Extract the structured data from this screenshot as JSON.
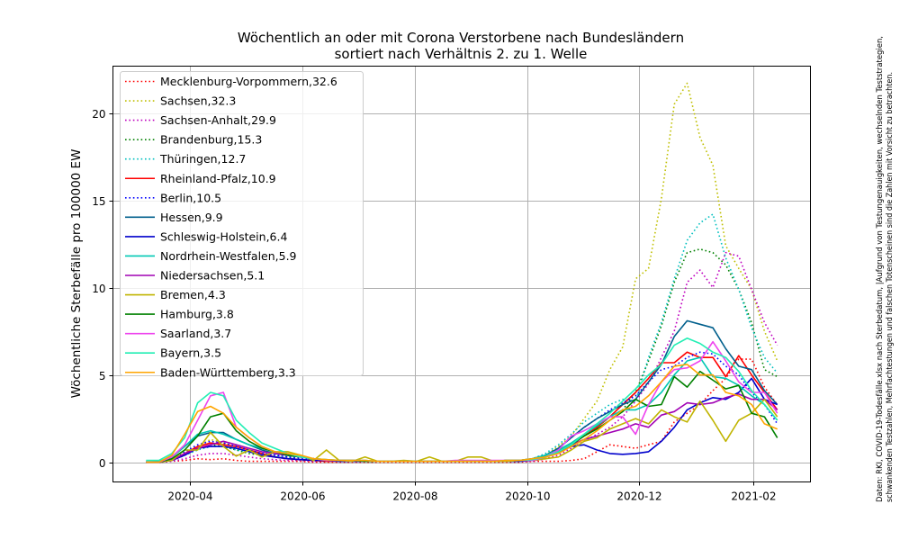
{
  "chart_data": {
    "type": "line",
    "title": "Wöchentlich an oder mit Corona Verstorbene nach Bundesländern",
    "subtitle": "sortiert nach Verhältnis 2. zu 1. Welle",
    "xlabel": "",
    "ylabel": "Wöchentliche Sterbefälle pro 100000 EW",
    "x_start": "2020-03-08",
    "x_step_days": 7,
    "xlim": [
      "2020-02-19",
      "2021-03-04"
    ],
    "ylim": [
      -1.13,
      22.68
    ],
    "x_ticks": [
      "2020-04",
      "2020-06",
      "2020-08",
      "2020-10",
      "2020-12",
      "2021-02"
    ],
    "y_ticks": [
      0,
      5,
      10,
      15,
      20
    ],
    "grid": true,
    "legend_position": "top-left",
    "footnote": [
      "Daten: RKI, COVID-19-Todesfälle.xlsx nach Sterbedatum, |Aufgrund von Testungenauigkeiten, wechselnden Teststrategien,",
      "schwankenden Testzahlen, Mehrfachtestungen und falschen Totenscheinen sind die Zahlen mit Vorsicht zu betrachten."
    ],
    "series": [
      {
        "label": "Mecklenburg-Vorpommern,32.6",
        "color": "#ff0000",
        "style": "dotted",
        "values": [
          0,
          0,
          0.05,
          0.1,
          0.2,
          0.15,
          0.2,
          0.1,
          0.05,
          0.05,
          0.05,
          0.05,
          0.05,
          0,
          0,
          0,
          0,
          0,
          0,
          0,
          0,
          0,
          0,
          0,
          0,
          0,
          0,
          0,
          0,
          0,
          0.05,
          0.05,
          0.05,
          0.1,
          0.2,
          0.6,
          1.0,
          0.9,
          0.8,
          1.0,
          1.2,
          2.3,
          2.8,
          3.3,
          4.1,
          4.8,
          5.9,
          5.9,
          4.3,
          3.3
        ]
      },
      {
        "label": "Sachsen,32.3",
        "color": "#bfbf00",
        "style": "dotted",
        "values": [
          0,
          0,
          0.1,
          0.5,
          0.9,
          1.3,
          1.1,
          0.8,
          0.6,
          0.4,
          0.3,
          0.2,
          0.15,
          0.1,
          0.05,
          0.05,
          0.05,
          0.05,
          0.05,
          0.05,
          0.05,
          0.05,
          0.05,
          0.05,
          0.05,
          0.05,
          0.05,
          0.05,
          0.1,
          0.1,
          0.2,
          0.4,
          0.9,
          1.5,
          2.5,
          3.5,
          5.3,
          6.6,
          10.5,
          11.1,
          15.1,
          20.5,
          21.7,
          18.6,
          17.0,
          12.4,
          11.1,
          9.9,
          7.5,
          5.8
        ]
      },
      {
        "label": "Sachsen-Anhalt,29.9",
        "color": "#bf00bf",
        "style": "dotted",
        "values": [
          0,
          0,
          0.05,
          0.2,
          0.4,
          0.5,
          0.5,
          0.4,
          0.3,
          0.2,
          0.15,
          0.1,
          0.1,
          0.05,
          0.05,
          0.05,
          0.05,
          0.05,
          0.05,
          0.05,
          0.05,
          0.05,
          0.05,
          0.05,
          0.05,
          0.05,
          0.05,
          0.05,
          0.05,
          0.05,
          0.05,
          0.2,
          0.4,
          0.8,
          1.2,
          1.6,
          2.0,
          2.6,
          3.5,
          4.5,
          6.0,
          7.5,
          10.3,
          11.0,
          10.0,
          12.0,
          11.8,
          9.9,
          8.0,
          6.7
        ]
      },
      {
        "label": "Brandenburg,15.3",
        "color": "#008000",
        "style": "dotted",
        "values": [
          0,
          0,
          0.1,
          0.4,
          0.8,
          1.0,
          0.9,
          0.7,
          0.5,
          0.4,
          0.3,
          0.2,
          0.15,
          0.1,
          0.05,
          0.05,
          0.05,
          0.05,
          0.05,
          0.05,
          0.05,
          0.05,
          0.05,
          0.05,
          0.05,
          0.05,
          0.05,
          0.05,
          0.05,
          0.05,
          0.1,
          0.3,
          0.6,
          1.0,
          1.5,
          2.0,
          2.6,
          3.0,
          4.0,
          5.8,
          7.8,
          10.3,
          12.0,
          12.2,
          12.0,
          11.3,
          9.9,
          8.0,
          5.3,
          4.9
        ]
      },
      {
        "label": "Thüringen,12.7",
        "color": "#00bfbf",
        "style": "dotted",
        "values": [
          0,
          0,
          0.1,
          0.4,
          0.7,
          0.9,
          0.9,
          0.7,
          0.6,
          0.5,
          0.4,
          0.3,
          0.3,
          0.2,
          0.1,
          0.1,
          0.05,
          0.05,
          0.05,
          0.05,
          0.05,
          0.05,
          0.05,
          0.05,
          0.05,
          0.05,
          0.05,
          0.05,
          0.05,
          0.1,
          0.2,
          0.5,
          1.0,
          1.6,
          2.3,
          2.8,
          3.3,
          3.6,
          3.5,
          6.0,
          8.0,
          10.5,
          12.7,
          13.7,
          14.2,
          11.7,
          9.9,
          7.7,
          6.0,
          5.1
        ]
      },
      {
        "label": "Rheinland-Pfalz,10.9",
        "color": "#ff0000",
        "style": "solid",
        "values": [
          0,
          0,
          0.1,
          0.5,
          0.9,
          1.1,
          1.0,
          0.9,
          0.7,
          0.5,
          0.3,
          0.2,
          0.15,
          0.1,
          0.05,
          0.05,
          0.05,
          0.05,
          0.05,
          0.05,
          0.05,
          0.05,
          0.05,
          0.05,
          0.05,
          0.05,
          0.05,
          0.05,
          0.05,
          0.1,
          0.15,
          0.3,
          0.6,
          1.0,
          1.5,
          2.0,
          2.6,
          3.3,
          4.0,
          4.8,
          5.7,
          5.7,
          6.3,
          6.0,
          6.0,
          4.9,
          6.1,
          5.0,
          4.0,
          3.0
        ]
      },
      {
        "label": "Berlin,10.5",
        "color": "#0000ff",
        "style": "dotted",
        "values": [
          0,
          0,
          0.1,
          0.6,
          1.0,
          1.2,
          1.1,
          0.9,
          0.7,
          0.5,
          0.4,
          0.3,
          0.2,
          0.15,
          0.1,
          0.05,
          0.05,
          0.05,
          0.05,
          0.05,
          0.05,
          0.05,
          0.05,
          0.05,
          0.05,
          0.05,
          0.05,
          0.05,
          0.1,
          0.1,
          0.2,
          0.4,
          0.8,
          1.4,
          2.0,
          2.5,
          3.0,
          3.4,
          3.8,
          4.6,
          5.3,
          5.5,
          6.0,
          6.3,
          6.2,
          5.5,
          5.0,
          4.0,
          3.3,
          2.2
        ]
      },
      {
        "label": "Hessen,9.9",
        "color": "#005f8c",
        "style": "solid",
        "values": [
          0,
          0,
          0.3,
          0.9,
          1.5,
          1.7,
          1.7,
          1.3,
          1.0,
          0.7,
          0.5,
          0.4,
          0.3,
          0.2,
          0.1,
          0.1,
          0.1,
          0.05,
          0.05,
          0.05,
          0.05,
          0.05,
          0.05,
          0.05,
          0.05,
          0.05,
          0.05,
          0.05,
          0.1,
          0.1,
          0.2,
          0.4,
          0.8,
          1.4,
          2.0,
          2.5,
          2.9,
          3.3,
          3.6,
          4.6,
          5.6,
          7.2,
          8.1,
          7.9,
          7.7,
          6.5,
          5.5,
          5.3,
          4.1,
          3.3
        ]
      },
      {
        "label": "Schleswig-Holstein,6.4",
        "color": "#0000cc",
        "style": "solid",
        "values": [
          0,
          0,
          0.1,
          0.4,
          0.8,
          0.9,
          0.9,
          0.8,
          0.6,
          0.4,
          0.3,
          0.2,
          0.15,
          0.1,
          0.1,
          0.05,
          0.05,
          0.05,
          0.05,
          0.05,
          0.05,
          0.05,
          0.05,
          0.05,
          0.05,
          0.05,
          0.05,
          0.05,
          0.05,
          0.05,
          0.1,
          0.3,
          0.6,
          0.9,
          1.0,
          0.7,
          0.5,
          0.45,
          0.5,
          0.6,
          1.2,
          2.0,
          3.0,
          3.4,
          3.7,
          3.6,
          4.0,
          4.8,
          3.6,
          3.3
        ]
      },
      {
        "label": "Nordrhein-Westfalen,5.9",
        "color": "#00c8b4",
        "style": "solid",
        "values": [
          0,
          0.05,
          0.3,
          0.9,
          1.6,
          1.8,
          1.6,
          1.3,
          1.0,
          0.8,
          0.6,
          0.4,
          0.3,
          0.2,
          0.15,
          0.1,
          0.1,
          0.05,
          0.05,
          0.05,
          0.05,
          0.05,
          0.05,
          0.05,
          0.05,
          0.05,
          0.05,
          0.05,
          0.1,
          0.1,
          0.2,
          0.4,
          0.7,
          1.1,
          1.6,
          2.1,
          2.6,
          3.0,
          3.0,
          3.3,
          4.0,
          5.0,
          5.8,
          6.0,
          4.9,
          4.8,
          4.4,
          3.8,
          3.3,
          2.4
        ]
      },
      {
        "label": "Niedersachsen,5.1",
        "color": "#a000b4",
        "style": "solid",
        "values": [
          0,
          0,
          0.1,
          0.5,
          0.8,
          1.0,
          1.2,
          1.0,
          0.8,
          0.6,
          0.5,
          0.4,
          0.3,
          0.2,
          0.1,
          0.1,
          0.1,
          0.05,
          0.05,
          0.05,
          0.05,
          0.05,
          0.05,
          0.05,
          0.05,
          0.05,
          0.05,
          0.05,
          0.1,
          0.1,
          0.15,
          0.3,
          0.6,
          1.0,
          1.3,
          1.5,
          1.7,
          1.9,
          2.2,
          2.0,
          2.7,
          2.9,
          3.4,
          3.3,
          3.4,
          3.7,
          3.9,
          3.6,
          3.6,
          3.0
        ]
      },
      {
        "label": "Bremen,4.3",
        "color": "#c0b400",
        "style": "solid",
        "values": [
          0,
          0,
          0.1,
          0.7,
          0.7,
          1.7,
          0.9,
          0.35,
          0.7,
          0.3,
          0.6,
          0.6,
          0.4,
          0.1,
          0.7,
          0.1,
          0.05,
          0.3,
          0.05,
          0.05,
          0.1,
          0.05,
          0.3,
          0.05,
          0.05,
          0.3,
          0.3,
          0.05,
          0.05,
          0.1,
          0.1,
          0.2,
          0.3,
          0.7,
          1.2,
          1.4,
          1.9,
          2.2,
          2.5,
          2.2,
          3.0,
          2.6,
          2.3,
          3.5,
          2.4,
          1.2,
          2.4,
          2.8,
          3.6,
          2.6
        ]
      },
      {
        "label": "Hamburg,3.8",
        "color": "#008000",
        "style": "solid",
        "values": [
          0,
          0,
          0.2,
          0.7,
          1.5,
          2.6,
          2.8,
          1.8,
          1.2,
          0.8,
          0.6,
          0.4,
          0.3,
          0.2,
          0.1,
          0.1,
          0.1,
          0.05,
          0.05,
          0.05,
          0.05,
          0.05,
          0.05,
          0.05,
          0.05,
          0.05,
          0.05,
          0.05,
          0.1,
          0.1,
          0.15,
          0.3,
          0.6,
          1.0,
          1.5,
          1.9,
          2.4,
          2.9,
          3.6,
          3.2,
          3.3,
          4.9,
          4.3,
          5.2,
          4.7,
          4.2,
          4.4,
          2.8,
          2.6,
          1.4
        ]
      },
      {
        "label": "Saarland,3.7",
        "color": "#ee44ee",
        "style": "solid",
        "values": [
          0,
          0,
          0.3,
          1.0,
          2.4,
          3.8,
          4.0,
          2.0,
          1.4,
          0.9,
          0.6,
          0.5,
          0.3,
          0.2,
          0.1,
          0.1,
          0.1,
          0.1,
          0.05,
          0.05,
          0.05,
          0.05,
          0.05,
          0.05,
          0.1,
          0.1,
          0.1,
          0.1,
          0.1,
          0.1,
          0.1,
          0.3,
          0.7,
          1.5,
          1.8,
          2.2,
          2.6,
          2.6,
          1.6,
          3.3,
          4.6,
          5.3,
          5.4,
          5.8,
          6.9,
          5.8,
          4.6,
          4.0,
          4.0,
          2.8
        ]
      },
      {
        "label": "Bayern,3.5",
        "color": "#22eeb4",
        "style": "solid",
        "values": [
          0.1,
          0.1,
          0.5,
          1.4,
          3.4,
          4.0,
          3.8,
          2.4,
          1.7,
          1.1,
          0.8,
          0.5,
          0.3,
          0.2,
          0.15,
          0.1,
          0.1,
          0.1,
          0.05,
          0.05,
          0.05,
          0.05,
          0.05,
          0.05,
          0.05,
          0.05,
          0.05,
          0.05,
          0.1,
          0.1,
          0.15,
          0.3,
          0.6,
          1.0,
          1.6,
          2.2,
          2.8,
          3.5,
          4.2,
          5.0,
          5.6,
          6.7,
          7.1,
          6.8,
          6.3,
          6.0,
          5.2,
          4.1,
          3.3,
          2.4
        ]
      },
      {
        "label": "Baden-Württemberg,3.3",
        "color": "#ffa500",
        "style": "solid",
        "values": [
          0,
          0,
          0.4,
          1.6,
          2.9,
          3.2,
          2.8,
          2.0,
          1.4,
          0.9,
          0.6,
          0.5,
          0.4,
          0.2,
          0.15,
          0.1,
          0.1,
          0.1,
          0.05,
          0.05,
          0.05,
          0.05,
          0.05,
          0.05,
          0.05,
          0.05,
          0.05,
          0.05,
          0.1,
          0.1,
          0.2,
          0.3,
          0.5,
          0.9,
          1.3,
          1.8,
          2.4,
          3.0,
          3.2,
          3.8,
          4.6,
          5.5,
          5.6,
          5.0,
          5.0,
          4.0,
          3.8,
          3.3,
          2.2,
          1.9
        ]
      }
    ]
  }
}
